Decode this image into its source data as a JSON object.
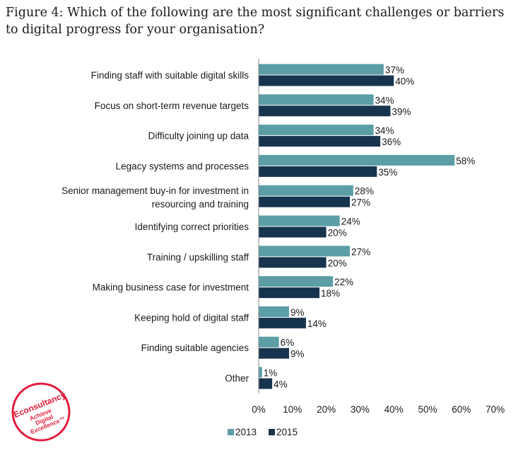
{
  "title": "Figure 4: Which of the following are the most significant challenges or barriers to digital progress for your organisation?",
  "logo": {
    "brand": "Econsultancy",
    "tagline": [
      "Achieve",
      "Digital",
      "Excellence™"
    ]
  },
  "colors": {
    "2013": "#5b9ea6",
    "2015": "#17344f"
  },
  "chart_data": {
    "type": "bar",
    "orientation": "horizontal",
    "categories": [
      [
        "Finding staff with suitable digital skills"
      ],
      [
        "Focus on short-term revenue targets"
      ],
      [
        "Difficulty joining up data"
      ],
      [
        "Legacy systems and processes"
      ],
      [
        "Senior management buy-in for investment in",
        "resourcing and training"
      ],
      [
        "Identifying correct priorities"
      ],
      [
        "Training / upskilling staff"
      ],
      [
        "Making business case for investment"
      ],
      [
        "Keeping hold of digital staff"
      ],
      [
        "Finding suitable agencies"
      ],
      [
        "Other"
      ]
    ],
    "series": [
      {
        "name": "2013",
        "values": [
          37,
          34,
          34,
          58,
          28,
          24,
          27,
          22,
          9,
          6,
          1
        ]
      },
      {
        "name": "2015",
        "values": [
          40,
          39,
          36,
          35,
          27,
          20,
          20,
          18,
          14,
          9,
          4
        ]
      }
    ],
    "value_suffix": "%",
    "xlim": [
      0,
      70
    ],
    "xticks": [
      "0%",
      "10%",
      "20%",
      "30%",
      "40%",
      "50%",
      "60%",
      "70%"
    ],
    "grid": false,
    "legend": "bottom"
  }
}
